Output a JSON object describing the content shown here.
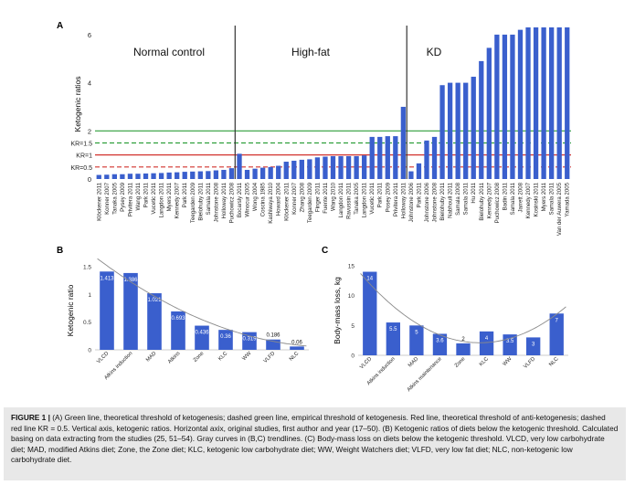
{
  "colors": {
    "bar": "#3a5fcd",
    "green": "#2e9e3a",
    "red": "#d2322d",
    "curve": "#8a8a8a",
    "divider": "#333333"
  },
  "chart_data": [
    {
      "id": "A",
      "panel_label": "A",
      "type": "bar",
      "ylabel": "Ketogenic ratios",
      "ylim": [
        0,
        6.3
      ],
      "y_ticks": [
        "0",
        "2",
        "4",
        "6"
      ],
      "grid": false,
      "section_labels": [
        "Normal control",
        "High-fat",
        "KD"
      ],
      "reference_lines": [
        {
          "label": "",
          "value": 2,
          "color": "green",
          "style": "solid"
        },
        {
          "label": "KR=1.5",
          "value": 1.5,
          "color": "green",
          "style": "dashed"
        },
        {
          "label": "KR=1",
          "value": 1,
          "color": "red",
          "style": "solid"
        },
        {
          "label": "KR=0.5",
          "value": 0.5,
          "color": "red",
          "style": "dashed"
        }
      ],
      "categories": [
        "Klöckener 2011",
        "Konner 2007",
        "Tanaka 2005",
        "Pysey 2009",
        "Privitera 2011",
        "Wang 2011",
        "Park 2011",
        "Vucetic 2011",
        "Langdon 2011",
        "Myers 2011",
        "Kennedy 2007",
        "Park 2011",
        "Teegarden 2009",
        "Bielohuby 2011",
        "Samala 2011",
        "Johnstone 2008",
        "Holloway 2011",
        "Puchowicz 2008",
        "Bocarsly 2011",
        "Winocur 2005",
        "Wong 2004",
        "Coscina 1985",
        "Kashiwaya 2010",
        "Howard 2004",
        "Klöckener 2011",
        "Konner 2007",
        "Zhang 2008",
        "Teegarden 2009",
        "Finger 2011",
        "Fuente 2011",
        "Wang 2010",
        "Langdon 2011",
        "Ravussin 2011",
        "Tanaka 2005",
        "Langdon 2011",
        "Vucetic 2011",
        "Park 2011",
        "Posey 2009",
        "Privitera 2011",
        "Holloway 2011",
        "Johnstone 2006",
        "Park 2011",
        "Johnstone 2006",
        "Johnstone 2008",
        "Bielohuby 2011",
        "Nabhouli 2011",
        "Samala 2008",
        "Samala 2011",
        "Hu 2011",
        "Bielohuby 2011",
        "Kennedy 2007",
        "Puchowicz 2008",
        "Badin 2011",
        "Samala 2011",
        "Jarrett 2008",
        "Kennedy 2007",
        "Kosinski 2011",
        "Myers 2011",
        "Samala 2011",
        "Van der Auwera 2005",
        "Yamada 2005"
      ],
      "values": [
        0.17,
        0.18,
        0.2,
        0.2,
        0.22,
        0.22,
        0.23,
        0.24,
        0.25,
        0.27,
        0.28,
        0.3,
        0.31,
        0.32,
        0.33,
        0.36,
        0.38,
        0.45,
        1.05,
        0.38,
        0.43,
        0.47,
        0.5,
        0.55,
        0.72,
        0.76,
        0.8,
        0.82,
        0.9,
        0.93,
        0.95,
        0.95,
        0.95,
        0.95,
        0.98,
        1.75,
        1.75,
        1.78,
        1.78,
        3.0,
        0.32,
        0.65,
        1.6,
        1.75,
        3.9,
        4.0,
        4.0,
        4.0,
        4.25,
        4.9,
        5.45,
        6.0,
        6.0,
        6.0,
        6.2,
        6.3,
        6.3,
        6.3,
        6.3,
        6.3,
        6.3
      ],
      "group_counts": [
        18,
        22,
        21
      ]
    },
    {
      "id": "B",
      "panel_label": "B",
      "type": "bar",
      "ylabel": "Ketogenic ratio",
      "ylim": [
        0,
        1.5
      ],
      "y_ticks": [
        "0",
        "0.5",
        "1",
        "1.5"
      ],
      "categories": [
        "VLCD",
        "Atkins induction",
        "MAD",
        "Atkins",
        "Zone",
        "KLC",
        "WW",
        "VLFD",
        "NLC"
      ],
      "values": [
        1.413,
        1.386,
        1.021,
        0.693,
        0.436,
        0.36,
        0.319,
        0.186,
        0.06
      ],
      "data_labels": [
        "1.413",
        "1.386",
        "1.021",
        "0.693",
        "0.436",
        "0.36",
        "0.319",
        "0.186",
        "0.06"
      ],
      "trendline": true
    },
    {
      "id": "C",
      "panel_label": "C",
      "type": "bar",
      "ylabel": "Body-mass loss, kg",
      "ylim": [
        0,
        15
      ],
      "y_ticks": [
        "0",
        "5",
        "10",
        "15"
      ],
      "categories": [
        "VLCD",
        "Atkins induction",
        "MAD",
        "Atkins maintenance",
        "Zone",
        "KLC",
        "WW",
        "VLFD",
        "NLC"
      ],
      "values": [
        14,
        5.5,
        5,
        3.6,
        2,
        4,
        3.5,
        3,
        7
      ],
      "data_labels": [
        "14",
        "5.5",
        "5",
        "3.6",
        "2",
        "4",
        "3.5",
        "3",
        "7"
      ],
      "trendline": true
    }
  ],
  "caption": {
    "figure_label": "FIGURE 1 |",
    "text": "(A) Green line, theoretical threshold of ketogenesis; dashed green line, empirical threshold of ketogenesis. Red line, theoretical threshold of anti-ketogenesis; dashed red line KR = 0.5. Vertical axis, ketogenic ratios. Horizontal axix, original studies, first author and year (17–50). (B) Ketogenic ratios of diets below the ketogenic threshold. Calculated basing on data extracting from the studies (25, 51–54). Gray curves in (B,C) trendlines. (C) Body-mass loss on diets below the ketogenic threshold. VLCD, very low carbohydrate diet; MAD, modified Atkins diet; Zone, the Zone diet; KLC, ketogenic low carbohydrate diet; WW, Weight Watchers diet; VLFD, very low fat diet; NLC, non-ketogenic low carbohydrate diet."
  }
}
